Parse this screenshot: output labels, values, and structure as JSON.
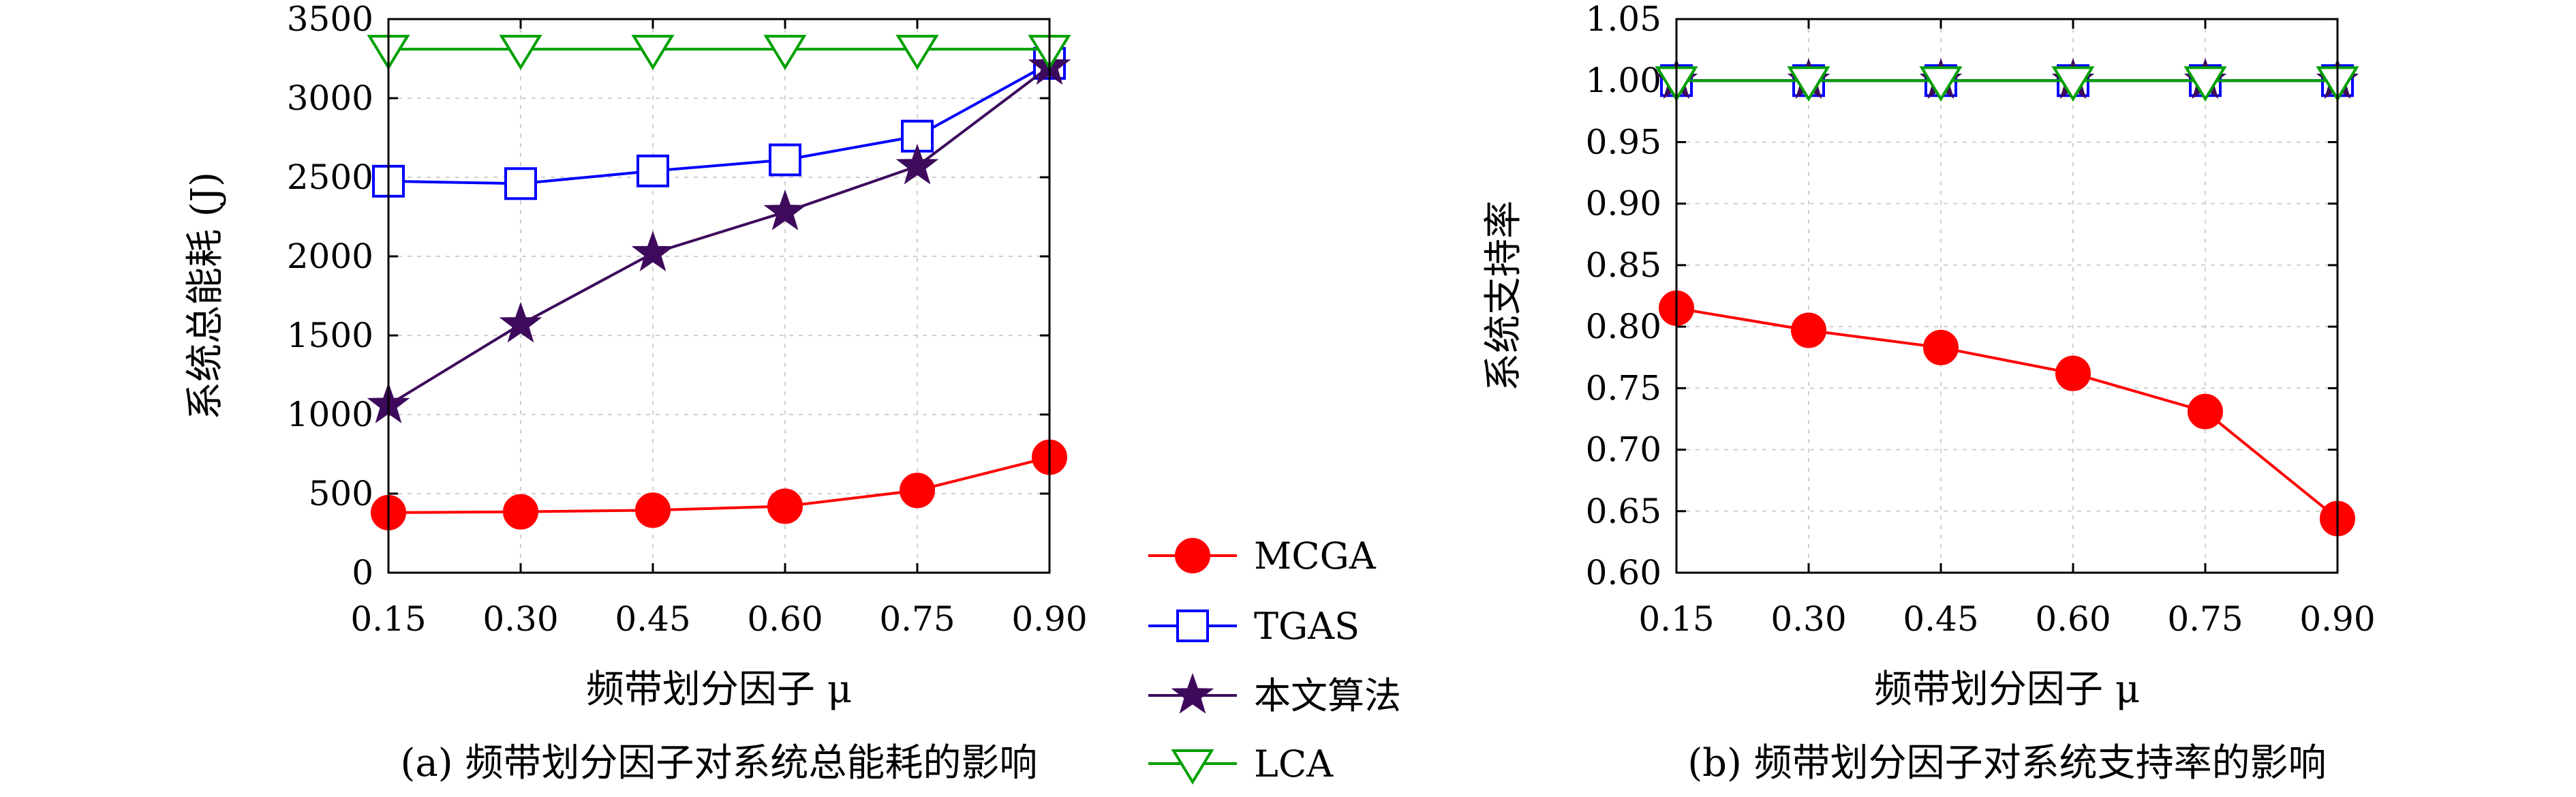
{
  "colors": {
    "mcga": "#ff0000",
    "tgas": "#0000ff",
    "ours": "#3d0a5c",
    "lca": "#00a000"
  },
  "legend": {
    "items": [
      {
        "label": "MCGA",
        "marker": "circle",
        "color": "#ff0000"
      },
      {
        "label": "TGAS",
        "marker": "square",
        "color": "#0000ff"
      },
      {
        "label": "本文算法",
        "marker": "star",
        "color": "#3d0a5c"
      },
      {
        "label": "LCA",
        "marker": "triangle-down",
        "color": "#00a000"
      }
    ]
  },
  "chart_data": [
    {
      "type": "line",
      "caption": "(a) 频带划分因子对系统总能耗的影响",
      "xlabel": "频带划分因子 μ",
      "ylabel": "系统总能耗 (J)",
      "x": [
        0.15,
        0.3,
        0.45,
        0.6,
        0.75,
        0.9
      ],
      "x_tick_labels": [
        "0.15",
        "0.30",
        "0.45",
        "0.60",
        "0.75",
        "0.90"
      ],
      "xlim": [
        0.15,
        0.9
      ],
      "ylim": [
        0,
        3500
      ],
      "y_ticks": [
        0,
        500,
        1000,
        1500,
        2000,
        2500,
        3000,
        3500
      ],
      "y_tick_labels": [
        "0",
        "500",
        "1000",
        "1500",
        "2000",
        "2500",
        "3000",
        "3500"
      ],
      "grid": true,
      "series": [
        {
          "name": "MCGA",
          "values": [
            380,
            385,
            395,
            420,
            520,
            730
          ]
        },
        {
          "name": "TGAS",
          "values": [
            2475,
            2460,
            2540,
            2610,
            2760,
            3220
          ]
        },
        {
          "name": "本文算法",
          "values": [
            1060,
            1570,
            2020,
            2280,
            2570,
            3200
          ]
        },
        {
          "name": "LCA",
          "values": [
            3310,
            3310,
            3310,
            3310,
            3310,
            3310
          ]
        }
      ]
    },
    {
      "type": "line",
      "caption": "(b) 频带划分因子对系统支持率的影响",
      "xlabel": "频带划分因子 μ",
      "ylabel": "系统支持率",
      "x": [
        0.15,
        0.3,
        0.45,
        0.6,
        0.75,
        0.9
      ],
      "x_tick_labels": [
        "0.15",
        "0.30",
        "0.45",
        "0.60",
        "0.75",
        "0.90"
      ],
      "xlim": [
        0.15,
        0.9
      ],
      "ylim": [
        0.6,
        1.05
      ],
      "y_ticks": [
        0.6,
        0.65,
        0.7,
        0.75,
        0.8,
        0.85,
        0.9,
        0.95,
        1.0,
        1.05
      ],
      "y_tick_labels": [
        "0.60",
        "0.65",
        "0.70",
        "0.75",
        "0.80",
        "0.85",
        "0.90",
        "0.95",
        "1.00",
        "1.05"
      ],
      "grid": true,
      "series": [
        {
          "name": "MCGA",
          "values": [
            0.815,
            0.797,
            0.783,
            0.762,
            0.731,
            0.644
          ]
        },
        {
          "name": "TGAS",
          "values": [
            1.0,
            1.0,
            1.0,
            1.0,
            1.0,
            1.0
          ]
        },
        {
          "name": "本文算法",
          "values": [
            1.0,
            1.0,
            1.0,
            1.0,
            1.0,
            1.0
          ]
        },
        {
          "name": "LCA",
          "values": [
            1.0,
            1.0,
            1.0,
            1.0,
            1.0,
            1.0
          ]
        }
      ]
    }
  ]
}
